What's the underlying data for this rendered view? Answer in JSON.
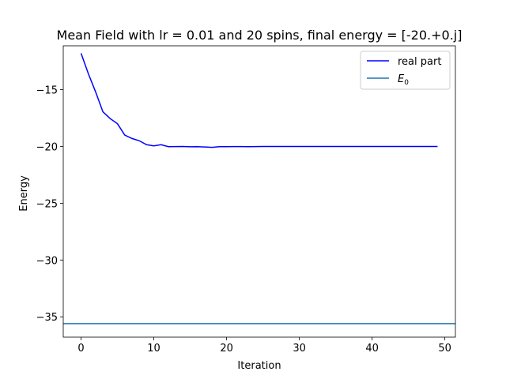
{
  "chart_data": {
    "type": "line",
    "title": "Mean Field with lr = 0.01 and 20 spins, final energy = [-20.+0.j]",
    "xlabel": "Iteration",
    "ylabel": "Energy",
    "xlim": [
      -2.45,
      51.45
    ],
    "ylim": [
      -36.79,
      -11.14
    ],
    "xticks": [
      0,
      10,
      20,
      30,
      40,
      50
    ],
    "yticks": [
      -35,
      -30,
      -25,
      -20,
      -15
    ],
    "grid": false,
    "legend_position": "upper right",
    "series": [
      {
        "name": "real part",
        "color": "#0000ff",
        "x": [
          0,
          1,
          2,
          3,
          4,
          5,
          6,
          7,
          8,
          9,
          10,
          11,
          12,
          13,
          14,
          15,
          16,
          17,
          18,
          19,
          20,
          21,
          22,
          23,
          24,
          25,
          26,
          27,
          28,
          29,
          30,
          31,
          32,
          33,
          34,
          35,
          36,
          37,
          38,
          39,
          40,
          41,
          42,
          43,
          44,
          45,
          46,
          47,
          48,
          49
        ],
        "y": [
          -11.8,
          -13.6,
          -15.2,
          -16.95,
          -17.55,
          -18.0,
          -19.0,
          -19.3,
          -19.5,
          -19.85,
          -19.95,
          -19.85,
          -20.02,
          -20.01,
          -20.0,
          -20.03,
          -20.02,
          -20.05,
          -20.08,
          -20.02,
          -20.02,
          -20.01,
          -20.01,
          -20.02,
          -20.01,
          -20.0,
          -20.0,
          -20.0,
          -20.0,
          -20.0,
          -20.0,
          -20.0,
          -20.0,
          -20.0,
          -20.0,
          -20.0,
          -20.0,
          -20.0,
          -20.0,
          -20.0,
          -20.0,
          -20.0,
          -20.0,
          -20.0,
          -20.0,
          -20.0,
          -20.0,
          -20.0,
          -20.0,
          -20.0
        ]
      },
      {
        "name": "E_0",
        "color": "#1f77b4",
        "type": "hline",
        "y": -35.6
      }
    ]
  }
}
